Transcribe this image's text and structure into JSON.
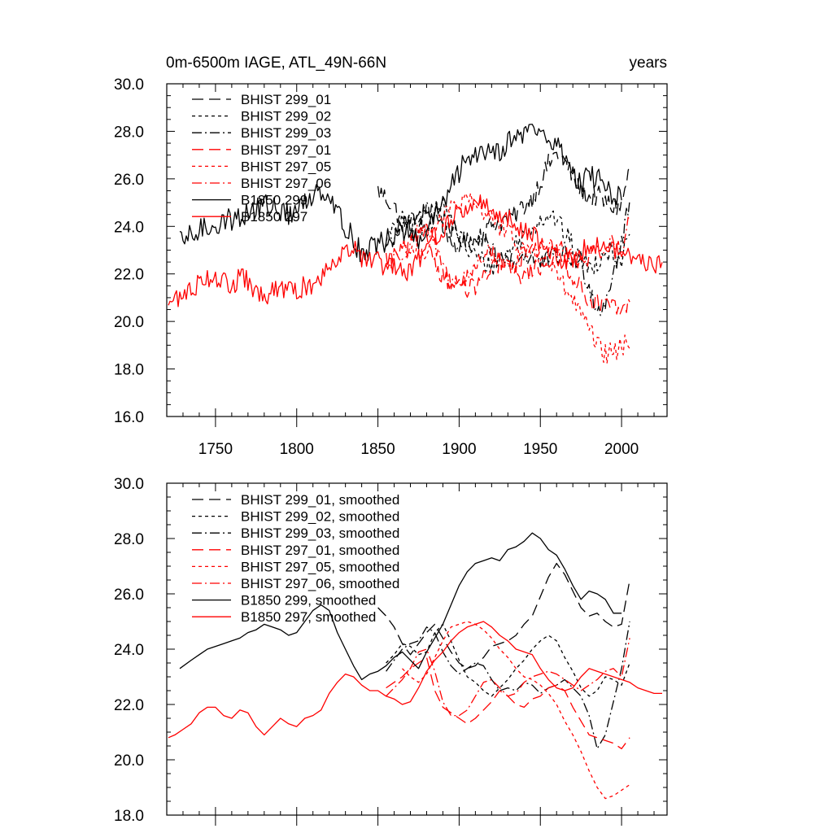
{
  "chart_data": [
    {
      "type": "line",
      "title": "0m-6500m IAGE, ATL_49N-66N",
      "right_title": "years",
      "xlabel": "",
      "ylabel": "",
      "xlim": [
        1720,
        2028
      ],
      "ylim": [
        16,
        30
      ],
      "xticks": [
        1750,
        1800,
        1850,
        1900,
        1950,
        2000
      ],
      "xtick_labels": [
        "1750",
        "1800",
        "1850",
        "1900",
        "1950",
        "2000"
      ],
      "yticks": [
        16,
        18,
        20,
        22,
        24,
        26,
        28,
        30
      ],
      "ytick_labels": [
        "16.0",
        "18.0",
        "20.0",
        "22.0",
        "24.0",
        "26.0",
        "28.0",
        "30.0"
      ],
      "legend_position": "top-left",
      "series": [
        {
          "name": "BHIST 299_01",
          "color": "#000000",
          "dash": "longdash",
          "noise": 0.45,
          "x": [
            1850,
            1855,
            1860,
            1865,
            1870,
            1875,
            1880,
            1885,
            1890,
            1895,
            1900,
            1905,
            1910,
            1915,
            1920,
            1925,
            1930,
            1935,
            1940,
            1945,
            1950,
            1955,
            1960,
            1965,
            1970,
            1975,
            1980,
            1985,
            1990,
            1995,
            2000,
            2005
          ],
          "y": [
            25.5,
            25.2,
            24.8,
            24.2,
            23.8,
            24.2,
            24.6,
            24.9,
            24.4,
            23.9,
            23.5,
            23.3,
            23.4,
            23.7,
            24.1,
            24.2,
            24.3,
            24.5,
            24.9,
            25.2,
            25.9,
            26.6,
            27.1,
            26.7,
            26.1,
            25.5,
            25.2,
            25.3,
            25.0,
            24.8,
            24.9,
            26.5
          ]
        },
        {
          "name": "BHIST 299_02",
          "color": "#000000",
          "dash": "shortdash",
          "noise": 0.45,
          "x": [
            1855,
            1860,
            1865,
            1870,
            1875,
            1880,
            1885,
            1890,
            1895,
            1900,
            1905,
            1910,
            1915,
            1920,
            1925,
            1930,
            1935,
            1940,
            1945,
            1950,
            1955,
            1960,
            1965,
            1970,
            1975,
            1980,
            1985,
            1990,
            1995,
            2000,
            2005
          ],
          "y": [
            23.5,
            23.8,
            24.2,
            24.1,
            23.8,
            23.9,
            24.6,
            24.9,
            24.3,
            23.6,
            23.0,
            22.8,
            22.5,
            22.3,
            22.6,
            22.9,
            23.3,
            23.6,
            24.0,
            24.3,
            24.5,
            24.3,
            23.7,
            23.2,
            22.6,
            22.3,
            22.5,
            23.0,
            22.9,
            22.7,
            23.5
          ]
        },
        {
          "name": "BHIST 299_03",
          "color": "#000000",
          "dash": "dashdot",
          "noise": 0.45,
          "x": [
            1855,
            1860,
            1865,
            1870,
            1875,
            1880,
            1885,
            1890,
            1895,
            1900,
            1905,
            1910,
            1915,
            1920,
            1925,
            1930,
            1935,
            1940,
            1945,
            1950,
            1955,
            1960,
            1965,
            1970,
            1975,
            1980,
            1985,
            1990,
            1995,
            2000,
            2005
          ],
          "y": [
            23.2,
            23.6,
            24.0,
            24.2,
            24.3,
            24.8,
            24.6,
            23.9,
            23.4,
            23.1,
            23.3,
            23.5,
            23.4,
            22.9,
            22.5,
            22.6,
            22.5,
            22.8,
            22.7,
            22.4,
            22.6,
            22.7,
            22.9,
            22.6,
            22.3,
            21.6,
            20.4,
            20.9,
            22.1,
            23.3,
            25.0
          ]
        },
        {
          "name": "BHIST 297_01",
          "color": "#ff0000",
          "dash": "longdash",
          "noise": 0.4,
          "x": [
            1855,
            1860,
            1865,
            1870,
            1875,
            1880,
            1885,
            1890,
            1895,
            1900,
            1905,
            1910,
            1915,
            1920,
            1925,
            1930,
            1935,
            1940,
            1945,
            1950,
            1955,
            1960,
            1965,
            1970,
            1975,
            1980,
            1985,
            1990,
            1995,
            2000,
            2005
          ],
          "y": [
            22.6,
            22.8,
            23.0,
            23.3,
            23.5,
            23.7,
            22.5,
            21.9,
            21.7,
            21.5,
            21.3,
            21.5,
            21.8,
            22.1,
            22.5,
            22.3,
            22.0,
            21.9,
            22.2,
            22.3,
            22.6,
            22.7,
            22.5,
            21.9,
            21.4,
            20.9,
            20.8,
            20.7,
            20.6,
            20.4,
            20.8
          ]
        },
        {
          "name": "BHIST 297_05",
          "color": "#ff0000",
          "dash": "shortdash",
          "noise": 0.45,
          "x": [
            1865,
            1870,
            1875,
            1880,
            1885,
            1890,
            1895,
            1900,
            1905,
            1910,
            1915,
            1920,
            1925,
            1930,
            1935,
            1940,
            1945,
            1950,
            1955,
            1960,
            1965,
            1970,
            1975,
            1980,
            1985,
            1990,
            1995,
            2000,
            2005
          ],
          "y": [
            23.3,
            23.0,
            22.8,
            23.1,
            23.7,
            24.3,
            24.8,
            24.9,
            25.0,
            24.9,
            24.7,
            24.4,
            24.0,
            23.7,
            23.3,
            23.0,
            22.9,
            22.7,
            22.4,
            22.0,
            21.4,
            20.9,
            20.3,
            19.6,
            19.0,
            18.6,
            18.7,
            18.9,
            19.1
          ]
        },
        {
          "name": "BHIST 297_06",
          "color": "#ff0000",
          "dash": "dashdot",
          "noise": 0.4,
          "x": [
            1855,
            1860,
            1865,
            1870,
            1875,
            1880,
            1885,
            1890,
            1895,
            1900,
            1905,
            1910,
            1915,
            1920,
            1925,
            1930,
            1935,
            1940,
            1945,
            1950,
            1955,
            1960,
            1965,
            1970,
            1975,
            1980,
            1985,
            1990,
            1995,
            2000,
            2005
          ],
          "y": [
            22.3,
            22.6,
            22.9,
            23.3,
            23.9,
            24.0,
            23.2,
            22.1,
            21.6,
            21.6,
            21.8,
            22.3,
            22.8,
            22.9,
            22.6,
            22.3,
            22.4,
            22.8,
            23.0,
            23.1,
            23.2,
            23.1,
            22.9,
            22.7,
            22.5,
            22.7,
            22.9,
            23.2,
            23.3,
            23.0,
            24.4
          ]
        },
        {
          "name": "B1850 299",
          "color": "#000000",
          "dash": "solid",
          "noise": 0.5,
          "x": [
            1728,
            1735,
            1740,
            1745,
            1750,
            1755,
            1760,
            1765,
            1770,
            1775,
            1780,
            1785,
            1790,
            1795,
            1800,
            1805,
            1810,
            1815,
            1820,
            1825,
            1830,
            1835,
            1840,
            1845,
            1850,
            1855,
            1860,
            1865,
            1870,
            1875,
            1880,
            1885,
            1890,
            1895,
            1900,
            1905,
            1910,
            1915,
            1920,
            1925,
            1930,
            1935,
            1940,
            1945,
            1950,
            1955,
            1960,
            1965,
            1970,
            1975,
            1980,
            1985,
            1990,
            1995,
            2000
          ],
          "y": [
            23.3,
            23.6,
            23.8,
            24.0,
            24.1,
            24.2,
            24.3,
            24.4,
            24.6,
            24.7,
            24.9,
            24.8,
            24.7,
            24.5,
            24.6,
            25.0,
            25.4,
            25.6,
            25.4,
            24.6,
            24.0,
            23.4,
            22.9,
            23.1,
            23.2,
            23.4,
            23.7,
            23.9,
            23.6,
            23.3,
            23.9,
            24.4,
            24.9,
            25.6,
            26.3,
            26.8,
            27.1,
            27.2,
            27.3,
            27.2,
            27.6,
            27.7,
            27.9,
            28.2,
            28.0,
            27.6,
            27.4,
            26.9,
            26.3,
            25.8,
            26.1,
            26.0,
            25.8,
            25.3,
            25.3
          ]
        },
        {
          "name": "B1850 297",
          "color": "#ff0000",
          "dash": "solid",
          "noise": 0.45,
          "x": [
            1721,
            1725,
            1730,
            1735,
            1740,
            1745,
            1750,
            1755,
            1760,
            1765,
            1770,
            1775,
            1780,
            1785,
            1790,
            1795,
            1800,
            1805,
            1810,
            1815,
            1820,
            1825,
            1830,
            1835,
            1840,
            1845,
            1850,
            1855,
            1860,
            1865,
            1870,
            1875,
            1880,
            1885,
            1890,
            1895,
            1900,
            1905,
            1910,
            1915,
            1920,
            1925,
            1930,
            1935,
            1940,
            1945,
            1950,
            1955,
            1960,
            1965,
            1970,
            1975,
            1980,
            1985,
            1990,
            1995,
            2000,
            2005,
            2010,
            2015,
            2020,
            2025
          ],
          "y": [
            20.8,
            20.9,
            21.1,
            21.3,
            21.7,
            21.9,
            21.9,
            21.6,
            21.5,
            21.8,
            21.7,
            21.2,
            20.9,
            21.2,
            21.5,
            21.3,
            21.2,
            21.5,
            21.6,
            21.8,
            22.4,
            22.8,
            23.1,
            23.0,
            22.7,
            22.5,
            22.5,
            22.3,
            22.2,
            22.0,
            22.1,
            22.6,
            23.2,
            23.6,
            23.9,
            24.3,
            24.6,
            24.8,
            24.9,
            25.0,
            24.8,
            24.5,
            24.3,
            24.0,
            23.9,
            23.8,
            23.3,
            22.9,
            22.6,
            22.5,
            22.6,
            23.0,
            23.3,
            23.2,
            23.1,
            23.0,
            22.9,
            22.8,
            22.6,
            22.5,
            22.4,
            22.4
          ]
        }
      ]
    },
    {
      "type": "line",
      "title": "",
      "xlim": [
        1720,
        2028
      ],
      "ylim": [
        18,
        30
      ],
      "xticks": [
        1750,
        1800,
        1850,
        1900,
        1950,
        2000
      ],
      "yticks": [
        18,
        20,
        22,
        24,
        26,
        28,
        30
      ],
      "ytick_labels": [
        "18.0",
        "20.0",
        "22.0",
        "24.0",
        "26.0",
        "28.0",
        "30.0"
      ],
      "legend_position": "top-left",
      "series": [
        {
          "name": "BHIST 299_01, smoothed",
          "color": "#000000",
          "dash": "longdash"
        },
        {
          "name": "BHIST 299_02, smoothed",
          "color": "#000000",
          "dash": "shortdash"
        },
        {
          "name": "BHIST 299_03, smoothed",
          "color": "#000000",
          "dash": "dashdot"
        },
        {
          "name": "BHIST 297_01, smoothed",
          "color": "#ff0000",
          "dash": "longdash"
        },
        {
          "name": "BHIST 297_05, smoothed",
          "color": "#ff0000",
          "dash": "shortdash"
        },
        {
          "name": "BHIST 297_06, smoothed",
          "color": "#ff0000",
          "dash": "dashdot"
        },
        {
          "name": "B1850 299, smoothed",
          "color": "#000000",
          "dash": "solid"
        },
        {
          "name": "B1850 297, smoothed",
          "color": "#ff0000",
          "dash": "solid"
        }
      ]
    }
  ]
}
